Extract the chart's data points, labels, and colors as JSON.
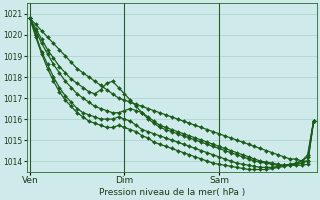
{
  "xlabel": "Pression niveau de la mer( hPa )",
  "bg_color": "#ceeaea",
  "grid_color": "#aed4d4",
  "line_color": "#1a5c1a",
  "ylim": [
    1013.5,
    1021.5
  ],
  "yticks": [
    1014,
    1015,
    1016,
    1017,
    1018,
    1019,
    1020,
    1021
  ],
  "xtick_labels": [
    "Ven",
    "Dim",
    "Sam"
  ],
  "xtick_positions": [
    0,
    16,
    32
  ],
  "vline_positions": [
    0,
    16,
    32
  ],
  "xlim": [
    -0.5,
    48.5
  ],
  "series": [
    [
      1020.8,
      1020.5,
      1020.2,
      1019.9,
      1019.6,
      1019.3,
      1019.0,
      1018.7,
      1018.4,
      1018.2,
      1018.0,
      1017.8,
      1017.6,
      1017.4,
      1017.2,
      1017.0,
      1016.9,
      1016.8,
      1016.7,
      1016.6,
      1016.5,
      1016.4,
      1016.3,
      1016.2,
      1016.1,
      1016.0,
      1015.9,
      1015.8,
      1015.7,
      1015.6,
      1015.5,
      1015.4,
      1015.3,
      1015.2,
      1015.1,
      1015.0,
      1014.9,
      1014.8,
      1014.7,
      1014.6,
      1014.5,
      1014.4,
      1014.3,
      1014.2,
      1014.1,
      1014.1,
      1014.0,
      1014.0,
      1015.9
    ],
    [
      1020.8,
      1020.3,
      1019.8,
      1019.3,
      1018.9,
      1018.5,
      1018.2,
      1017.9,
      1017.7,
      1017.5,
      1017.3,
      1017.2,
      1017.4,
      1017.7,
      1017.8,
      1017.5,
      1017.2,
      1016.9,
      1016.6,
      1016.3,
      1016.0,
      1015.8,
      1015.6,
      1015.5,
      1015.4,
      1015.3,
      1015.2,
      1015.1,
      1015.0,
      1014.9,
      1014.8,
      1014.7,
      1014.6,
      1014.5,
      1014.4,
      1014.3,
      1014.2,
      1014.1,
      1014.0,
      1013.95,
      1013.9,
      1013.85,
      1013.8,
      1013.8,
      1013.8,
      1013.9,
      1014.0,
      1014.2,
      1015.9
    ],
    [
      1020.8,
      1020.2,
      1019.6,
      1019.1,
      1018.6,
      1018.2,
      1017.8,
      1017.5,
      1017.2,
      1017.0,
      1016.8,
      1016.6,
      1016.5,
      1016.4,
      1016.3,
      1016.3,
      1016.4,
      1016.5,
      1016.4,
      1016.3,
      1016.1,
      1015.9,
      1015.7,
      1015.6,
      1015.5,
      1015.4,
      1015.3,
      1015.2,
      1015.1,
      1015.0,
      1014.9,
      1014.8,
      1014.7,
      1014.6,
      1014.5,
      1014.4,
      1014.3,
      1014.2,
      1014.1,
      1014.0,
      1013.95,
      1013.9,
      1013.85,
      1013.8,
      1013.8,
      1013.8,
      1013.8,
      1013.85,
      1015.9
    ],
    [
      1020.8,
      1020.0,
      1019.2,
      1018.6,
      1018.0,
      1017.5,
      1017.1,
      1016.8,
      1016.5,
      1016.3,
      1016.2,
      1016.1,
      1016.0,
      1016.0,
      1016.0,
      1016.1,
      1016.0,
      1015.9,
      1015.7,
      1015.5,
      1015.4,
      1015.3,
      1015.2,
      1015.1,
      1015.0,
      1014.9,
      1014.8,
      1014.7,
      1014.6,
      1014.5,
      1014.4,
      1014.3,
      1014.2,
      1014.1,
      1014.0,
      1013.9,
      1013.85,
      1013.8,
      1013.75,
      1013.7,
      1013.7,
      1013.7,
      1013.75,
      1013.8,
      1013.85,
      1013.9,
      1014.0,
      1014.3,
      1015.9
    ],
    [
      1020.8,
      1019.9,
      1019.1,
      1018.4,
      1017.8,
      1017.3,
      1016.9,
      1016.6,
      1016.3,
      1016.1,
      1015.9,
      1015.8,
      1015.7,
      1015.6,
      1015.6,
      1015.7,
      1015.6,
      1015.5,
      1015.4,
      1015.2,
      1015.1,
      1014.9,
      1014.8,
      1014.7,
      1014.6,
      1014.5,
      1014.4,
      1014.3,
      1014.2,
      1014.1,
      1014.0,
      1013.9,
      1013.85,
      1013.8,
      1013.75,
      1013.7,
      1013.65,
      1013.6,
      1013.6,
      1013.6,
      1013.6,
      1013.65,
      1013.7,
      1013.75,
      1013.8,
      1013.85,
      1013.9,
      1014.0,
      1015.9
    ]
  ]
}
